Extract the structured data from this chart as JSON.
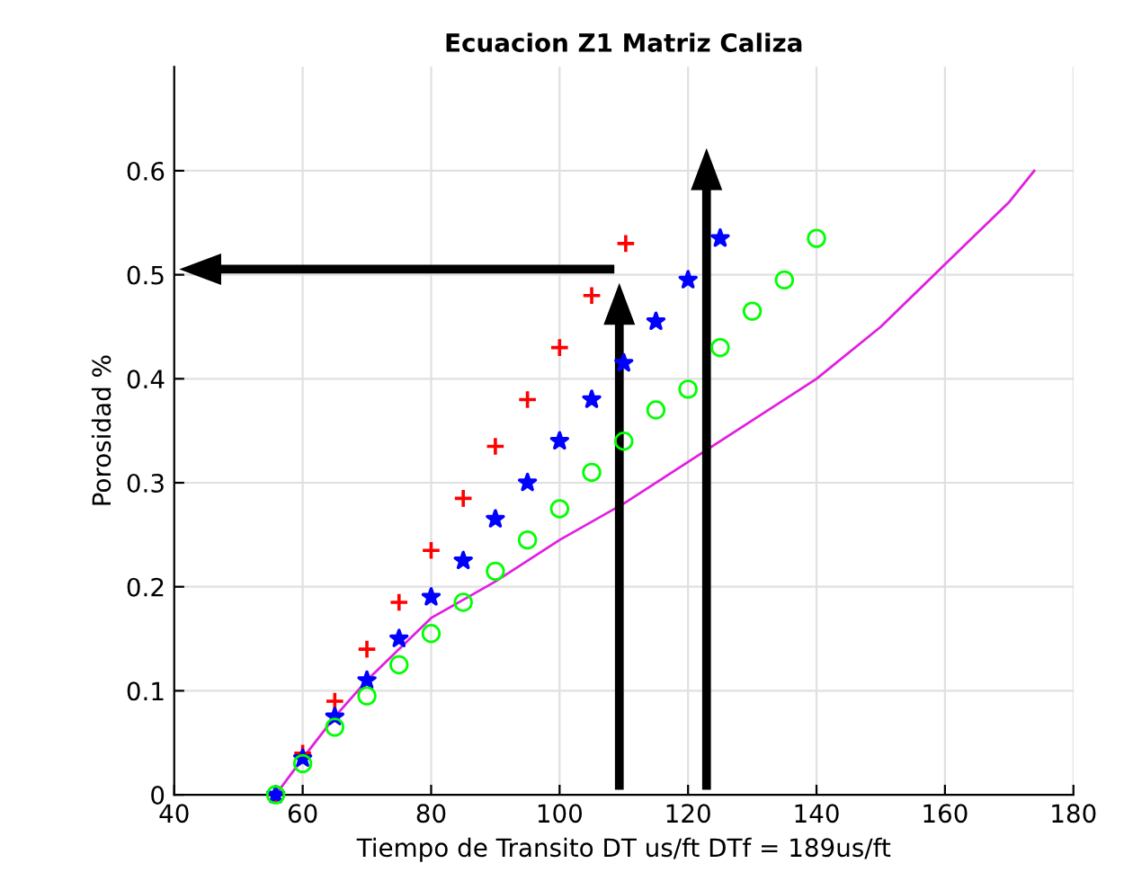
{
  "chart_data": {
    "type": "line",
    "title": "Ecuacion Z1 Matriz Caliza",
    "xlabel": "Tiempo de Transito DT us/ft DTf = 189us/ft",
    "ylabel": "Porosidad %",
    "xlim": [
      40,
      180
    ],
    "ylim": [
      0,
      0.7
    ],
    "xticks": [
      40,
      60,
      80,
      100,
      120,
      140,
      160,
      180
    ],
    "yticks": [
      0,
      0.1,
      0.2,
      0.3,
      0.4,
      0.5,
      0.6
    ],
    "grid": true,
    "legend": false,
    "series": [
      {
        "type": "scatter",
        "color": "#ff0000",
        "marker": "cross",
        "x": [
          55.8,
          60,
          65,
          70,
          75,
          80,
          85,
          90,
          95,
          100,
          105,
          110.3
        ],
        "values": [
          0,
          0.04,
          0.09,
          0.14,
          0.185,
          0.235,
          0.285,
          0.335,
          0.38,
          0.43,
          0.48,
          0.53
        ]
      },
      {
        "type": "scatter",
        "color": "#0000ff",
        "marker": "star",
        "x": [
          55.8,
          60,
          65,
          70,
          75,
          80,
          85,
          90,
          95,
          100,
          105,
          110,
          115,
          120,
          125
        ],
        "values": [
          0,
          0.035,
          0.075,
          0.11,
          0.15,
          0.19,
          0.225,
          0.265,
          0.3,
          0.34,
          0.38,
          0.415,
          0.455,
          0.495,
          0.535
        ]
      },
      {
        "type": "scatter",
        "color": "#00ff00",
        "marker": "circle",
        "x": [
          55.8,
          60,
          65,
          70,
          75,
          80,
          85,
          90,
          95,
          100,
          105,
          110,
          115,
          120,
          125,
          130,
          135,
          140
        ],
        "values": [
          0,
          0.03,
          0.065,
          0.095,
          0.125,
          0.155,
          0.185,
          0.215,
          0.245,
          0.275,
          0.31,
          0.34,
          0.37,
          0.39,
          0.43,
          0.465,
          0.495,
          0.535
        ]
      },
      {
        "color": "#e020e0",
        "marker": "none",
        "line_style": "solid",
        "x": [
          55.8,
          60,
          65,
          70,
          80,
          90,
          100,
          110,
          120,
          130,
          140,
          150,
          160,
          170,
          173.9
        ],
        "values": [
          0,
          0.035,
          0.075,
          0.11,
          0.17,
          0.205,
          0.245,
          0.28,
          0.32,
          0.36,
          0.4,
          0.45,
          0.51,
          0.57,
          0.6
        ]
      }
    ]
  }
}
